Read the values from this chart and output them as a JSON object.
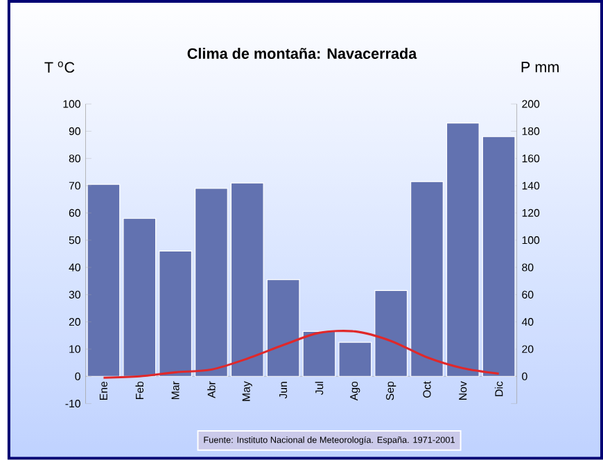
{
  "chart_data": {
    "type": "bar",
    "title": "Clima de montaña: Navacerrada",
    "ylabel": "T $^{o}$C",
    "y2label": "P mm",
    "categories": [
      "Ene",
      "Feb",
      "Mar",
      "Abr",
      "May",
      "Jun",
      "Jul",
      "Ago",
      "Sep",
      "Oct",
      "Nov",
      "Dic"
    ],
    "series": [
      {
        "axis": "y2",
        "color": "#6272b0",
        "values": [
          141,
          116,
          92,
          138,
          142,
          71,
          33,
          25,
          63,
          143,
          186,
          176
        ]
      },
      {
        "type": "line",
        "axis": "y",
        "color": "#e0282a",
        "values": [
          -0.5,
          0,
          1.5,
          2.5,
          6.5,
          11.5,
          16,
          16.5,
          13,
          7,
          3,
          1
        ]
      }
    ],
    "ylim": [
      -10,
      100
    ],
    "yticks": [
      -10,
      0,
      10,
      20,
      30,
      40,
      50,
      60,
      70,
      80,
      90,
      100
    ],
    "y2lim": [
      -20,
      200
    ],
    "y2ticks": [
      {
        "value": -20,
        "label": null
      },
      0,
      20,
      40,
      60,
      80,
      100,
      120,
      140,
      160,
      180,
      200
    ],
    "annotations": [
      "Fuente: Instituto Nacional de Meteorología. España. 1971-2001"
    ]
  }
}
